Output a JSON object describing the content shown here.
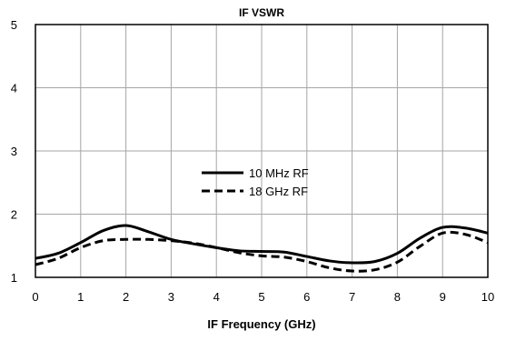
{
  "chart_data": {
    "type": "line",
    "title": "IF VSWR",
    "xlabel": "IF Frequency (GHz)",
    "ylabel": "",
    "xlim": [
      0,
      10
    ],
    "ylim": [
      1,
      5
    ],
    "xticks": [
      0,
      1,
      2,
      3,
      4,
      5,
      6,
      7,
      8,
      9,
      10
    ],
    "yticks": [
      1,
      2,
      3,
      4,
      5
    ],
    "grid": true,
    "legend_position": "center",
    "series": [
      {
        "name": "10 MHz RF",
        "style": "solid",
        "color": "#000000",
        "x": [
          0,
          0.5,
          1,
          1.5,
          2,
          2.5,
          3,
          3.5,
          4,
          4.5,
          5,
          5.5,
          6,
          6.5,
          7,
          7.5,
          8,
          8.5,
          9,
          9.5,
          10
        ],
        "y": [
          1.3,
          1.38,
          1.55,
          1.74,
          1.82,
          1.72,
          1.6,
          1.53,
          1.47,
          1.42,
          1.41,
          1.4,
          1.33,
          1.26,
          1.23,
          1.25,
          1.38,
          1.62,
          1.79,
          1.78,
          1.7
        ]
      },
      {
        "name": "18 GHz RF",
        "style": "dashed",
        "color": "#000000",
        "x": [
          0,
          0.5,
          1,
          1.5,
          2,
          2.5,
          3,
          3.5,
          4,
          4.5,
          5,
          5.5,
          6,
          6.5,
          7,
          7.5,
          8,
          8.5,
          9,
          9.5,
          10
        ],
        "y": [
          1.2,
          1.3,
          1.47,
          1.58,
          1.6,
          1.6,
          1.58,
          1.54,
          1.47,
          1.39,
          1.34,
          1.32,
          1.25,
          1.15,
          1.1,
          1.12,
          1.24,
          1.49,
          1.7,
          1.68,
          1.55
        ]
      }
    ]
  }
}
